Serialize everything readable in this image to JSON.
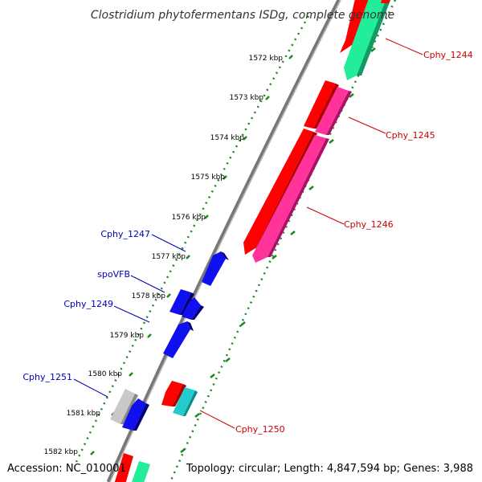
{
  "title": "Clostridium phytofermentans ISDg, complete genome",
  "accession": "Accession: NC_010001",
  "topology": "Topology: circular; Length: 4,847,594 bp; Genes: 3,988",
  "colors": {
    "backbone": "#888888",
    "label_red": "#cc0000",
    "label_blue": "#0000bb",
    "tick_green": "#1a8a1a",
    "cds_red": "#ff0000",
    "cds_magenta": "#ff3399",
    "cds_green": "#22ee99",
    "cds_blue": "#1010ee",
    "cds_cyan": "#22cccc",
    "cds_gray": "#c8c8c8"
  },
  "kbp_labels": [
    "1572 kbp",
    "1573 kbp",
    "1574 kbp",
    "1575 kbp",
    "1576 kbp",
    "1577 kbp",
    "1578 kbp",
    "1579 kbp",
    "1580 kbp",
    "1581 kbp",
    "1582 kbp"
  ],
  "gene_labels": [
    {
      "text": "Cphy_1244",
      "side": "right"
    },
    {
      "text": "Cphy_1245",
      "side": "right"
    },
    {
      "text": "Cphy_1246",
      "side": "right"
    },
    {
      "text": "Cphy_1250",
      "side": "right"
    },
    {
      "text": "Cphy_1247",
      "side": "left"
    },
    {
      "text": "spoVFB",
      "side": "left"
    },
    {
      "text": "Cphy_1249",
      "side": "left"
    },
    {
      "text": "Cphy_1251",
      "side": "left"
    }
  ]
}
